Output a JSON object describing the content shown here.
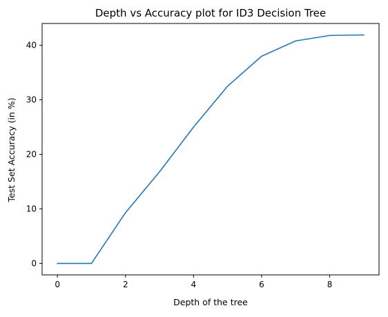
{
  "chart_data": {
    "type": "line",
    "title": "Depth vs Accuracy plot for ID3 Decision Tree",
    "xlabel": "Depth of the tree",
    "ylabel": "Test Set Accuracy (in %)",
    "xlim": [
      -0.45,
      9.45
    ],
    "ylim": [
      -2.1,
      44.0
    ],
    "xticks": [
      0,
      2,
      4,
      6,
      8
    ],
    "xtick_labels": [
      "0",
      "2",
      "4",
      "6",
      "8"
    ],
    "yticks": [
      0,
      10,
      20,
      30,
      40
    ],
    "ytick_labels": [
      "0",
      "10",
      "20",
      "30",
      "40"
    ],
    "grid": false,
    "series": [
      {
        "color": "#1f77b4",
        "x": [
          0,
          1,
          2,
          3,
          4,
          5,
          6,
          7,
          8,
          9
        ],
        "y": [
          0,
          0,
          9.3,
          16.8,
          25.0,
          32.5,
          38.0,
          40.8,
          41.8,
          41.9
        ]
      }
    ]
  }
}
